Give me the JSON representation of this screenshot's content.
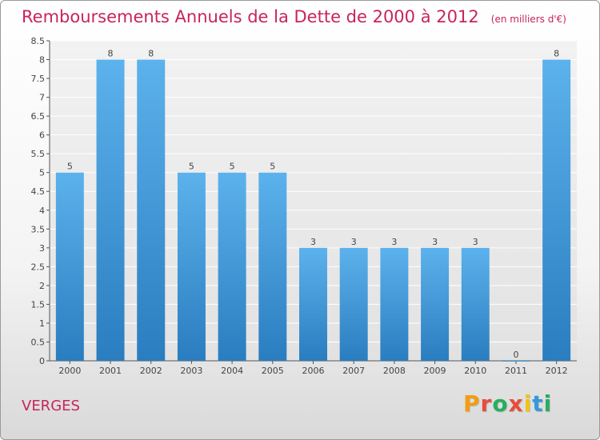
{
  "header": {
    "title": "Remboursements Annuels de la Dette de 2000 à 2012",
    "unit": "(en milliers d'€)"
  },
  "footer": {
    "commune": "VERGES",
    "brand": "Proxiti",
    "brand_colors": [
      "#f39c12",
      "#e74c3c",
      "#27ae60",
      "#e74c3c",
      "#f1c40f",
      "#3498db",
      "#27ae60"
    ]
  },
  "colors": {
    "accent": "#c8245a",
    "bar_top": "#5cb2ec",
    "bar_bottom": "#2a7dbf"
  },
  "chart_data": {
    "type": "bar",
    "categories": [
      "2000",
      "2001",
      "2002",
      "2003",
      "2004",
      "2005",
      "2006",
      "2007",
      "2008",
      "2009",
      "2010",
      "2011",
      "2012"
    ],
    "values": [
      5,
      8,
      8,
      5,
      5,
      5,
      3,
      3,
      3,
      3,
      3,
      0,
      8
    ],
    "value_labels": [
      "5",
      "8",
      "8",
      "5",
      "5",
      "5",
      "3",
      "3",
      "3",
      "3",
      "3",
      "0",
      "8"
    ],
    "title": "Remboursements Annuels de la Dette de 2000 à 2012",
    "xlabel": "",
    "ylabel": "",
    "ylim": [
      0,
      8.5
    ],
    "yticks": [
      0,
      0.5,
      1,
      1.5,
      2,
      2.5,
      3,
      3.5,
      4,
      4.5,
      5,
      5.5,
      6,
      6.5,
      7,
      7.5,
      8,
      8.5
    ],
    "ytick_labels": [
      "0",
      "0.5",
      "1",
      "1.5",
      "2",
      "2.5",
      "3",
      "3.5",
      "4",
      "4.5",
      "5",
      "5.5",
      "6",
      "6.5",
      "7",
      "7.5",
      "8",
      "8.5"
    ],
    "grid": true,
    "legend": false
  }
}
